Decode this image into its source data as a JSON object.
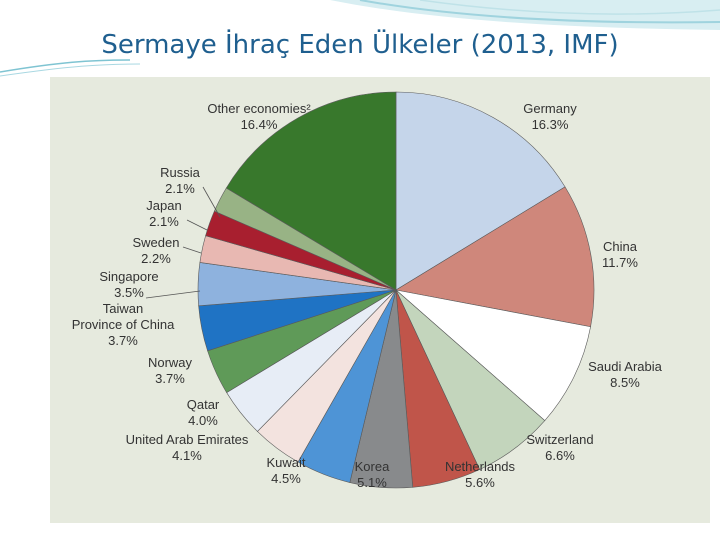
{
  "slide": {
    "title": "Sermaye İhraç Eden Ülkeler (2013, IMF)"
  },
  "colors": {
    "title": "#1f5f8f",
    "panel": "#e6eade"
  },
  "chart_data": {
    "type": "pie",
    "title": "",
    "unit": "%",
    "slices": [
      {
        "name": "Germany",
        "value": 16.3,
        "display": "16.3%",
        "color": "#c5d5ea"
      },
      {
        "name": "China",
        "value": 11.7,
        "display": "11.7%",
        "color": "#cf877b"
      },
      {
        "name": "Saudi Arabia",
        "value": 8.5,
        "display": "8.5%",
        "color": "#ffffff"
      },
      {
        "name": "Switzerland",
        "value": 6.6,
        "display": "6.6%",
        "color": "#c3d5bc"
      },
      {
        "name": "Netherlands",
        "value": 5.6,
        "display": "5.6%",
        "color": "#c0554a"
      },
      {
        "name": "Korea",
        "value": 5.1,
        "display": "5.1%",
        "color": "#888a8c"
      },
      {
        "name": "Kuwait",
        "value": 4.5,
        "display": "4.5%",
        "color": "#4e94d6"
      },
      {
        "name": "United Arab Emirates",
        "value": 4.1,
        "display": "4.1%",
        "color": "#f3e3df"
      },
      {
        "name": "Qatar",
        "value": 4.0,
        "display": "4.0%",
        "color": "#e7edf6"
      },
      {
        "name": "Norway",
        "value": 3.7,
        "display": "3.7%",
        "color": "#5f9a58"
      },
      {
        "name": "Taiwan Province of China",
        "value": 3.7,
        "display": "3.7%",
        "color": "#1f73c4",
        "label_lines": [
          "Taiwan",
          "Province of China"
        ]
      },
      {
        "name": "Singapore",
        "value": 3.5,
        "display": "3.5%",
        "color": "#8eb2de"
      },
      {
        "name": "Sweden",
        "value": 2.2,
        "display": "2.2%",
        "color": "#e8b8b2"
      },
      {
        "name": "Japan",
        "value": 2.1,
        "display": "2.1%",
        "color": "#a81f2f"
      },
      {
        "name": "Russia",
        "value": 2.1,
        "display": "2.1%",
        "color": "#98b385"
      },
      {
        "name": "Other economies²",
        "value": 16.4,
        "display": "16.4%",
        "color": "#38782c"
      }
    ]
  }
}
